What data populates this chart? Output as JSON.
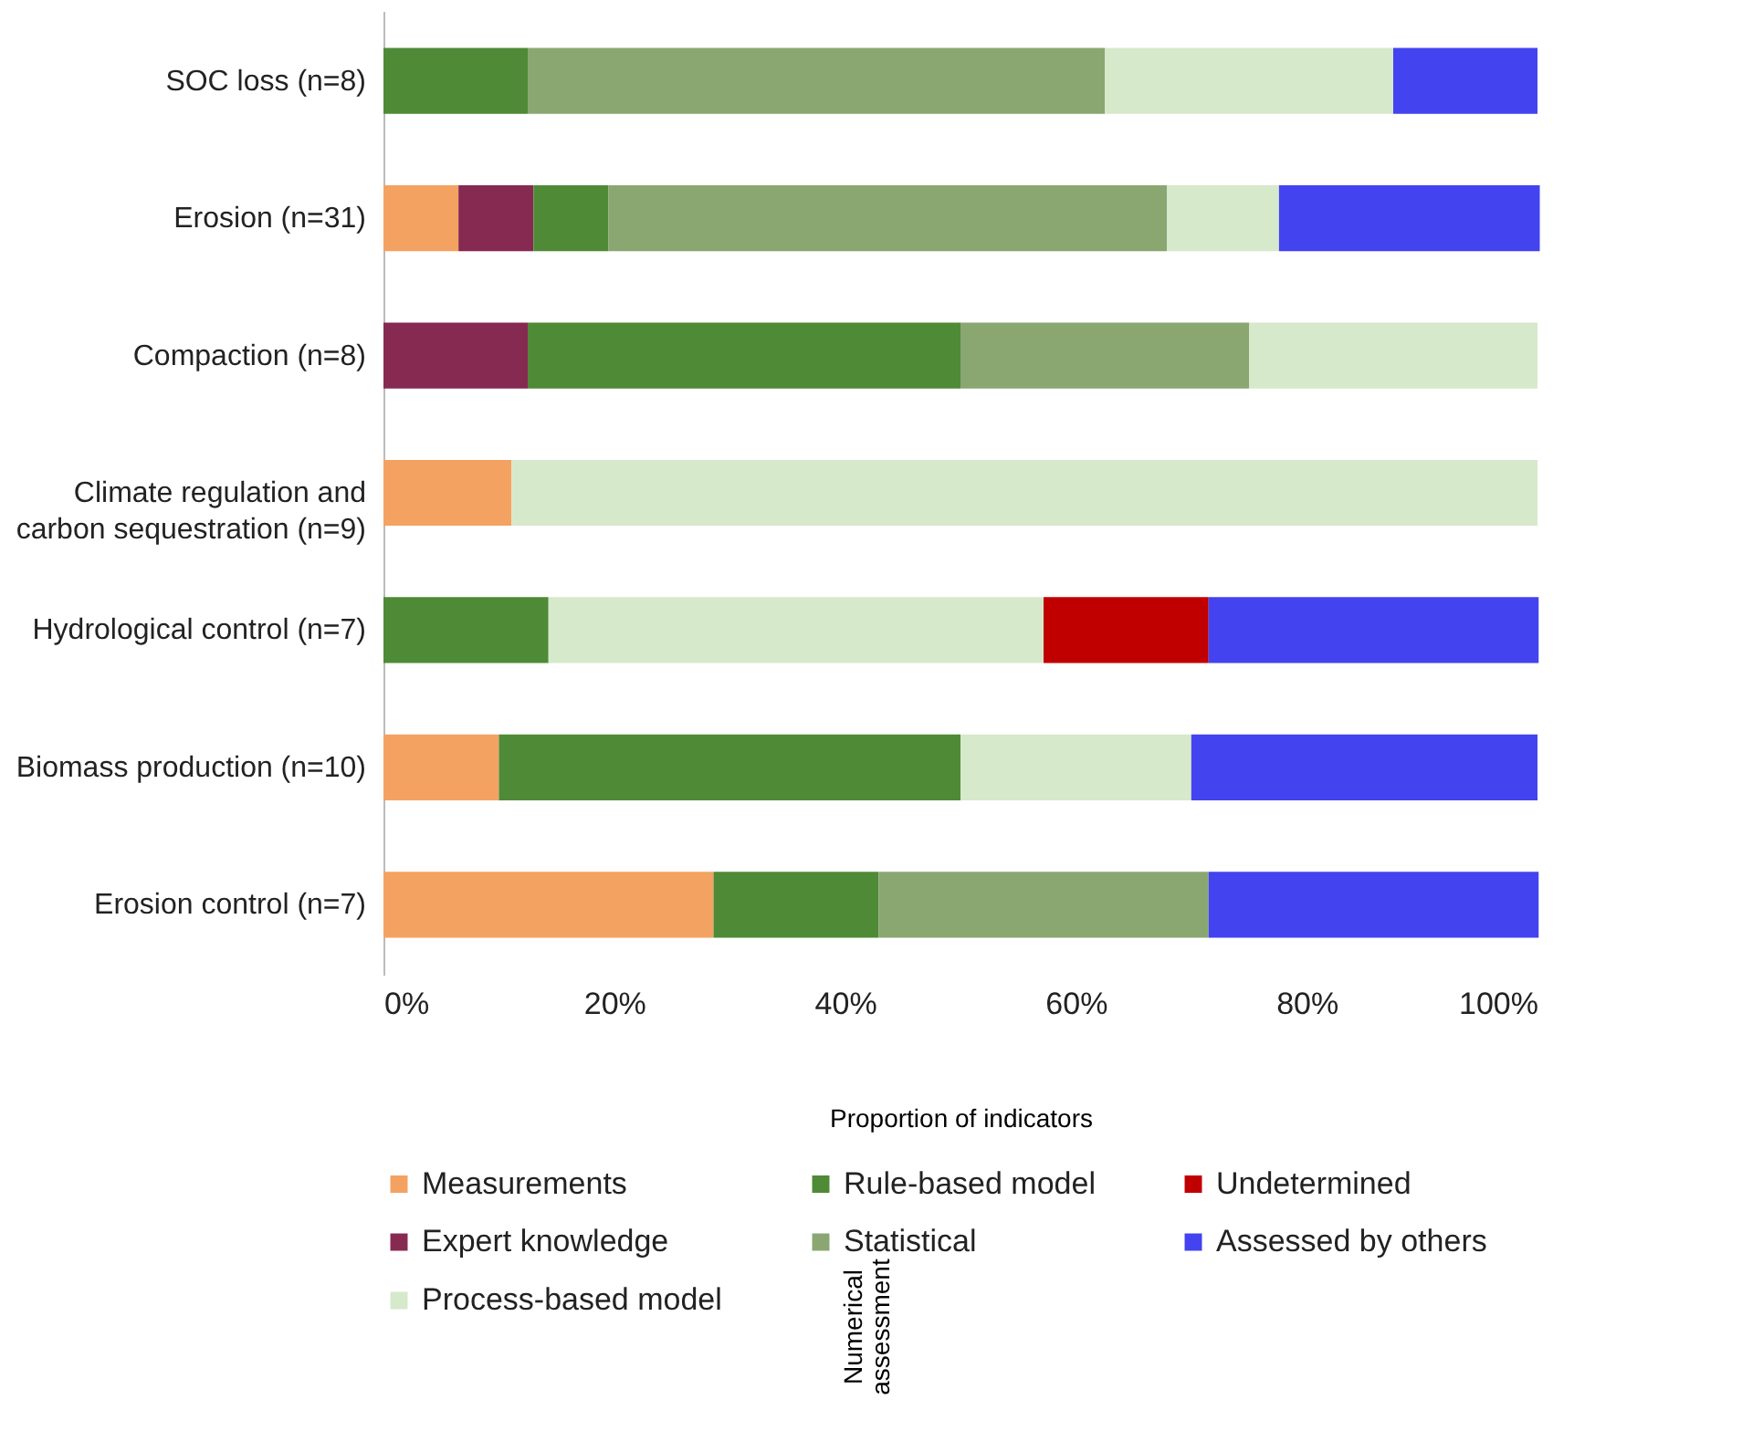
{
  "chart_data": {
    "type": "bar",
    "orientation": "horizontal",
    "stacked": true,
    "categories": [
      "SOC loss (n=8)",
      "Erosion (n=31)",
      "Compaction (n=8)",
      "Climate regulation and carbon sequestration (n=9)",
      "Hydrological control (n=7)",
      "Biomass production (n=10)",
      "Erosion control (n=7)"
    ],
    "series": [
      {
        "name": "Measurements",
        "color": "#f4a261",
        "values": [
          0,
          6.5,
          0,
          11.1,
          0,
          10,
          28.6
        ]
      },
      {
        "name": "Expert knowledge",
        "color": "#862a52",
        "values": [
          0,
          6.5,
          12.5,
          0,
          0,
          0,
          0
        ]
      },
      {
        "name": "Rule-based model",
        "color": "#4f8a37",
        "values": [
          12.5,
          6.5,
          37.5,
          0,
          14.3,
          40,
          14.3
        ]
      },
      {
        "name": "Statistical",
        "color": "#8aa772",
        "values": [
          50,
          48.4,
          25,
          0,
          0,
          0,
          28.6
        ]
      },
      {
        "name": "Process-based model",
        "color": "#d6e9cb",
        "values": [
          25,
          9.7,
          25,
          88.9,
          42.9,
          20,
          0
        ]
      },
      {
        "name": "Undetermined",
        "color": "#c00000",
        "values": [
          0,
          0,
          0,
          0,
          14.3,
          0,
          0
        ]
      },
      {
        "name": "Assessed by others",
        "color": "#4343ef",
        "values": [
          12.5,
          22.6,
          0,
          0,
          28.6,
          30,
          28.6
        ]
      }
    ],
    "xlim": [
      0,
      100
    ],
    "xticks": [
      {
        "value": 0,
        "label": "0%"
      },
      {
        "value": 20,
        "label": "20%"
      },
      {
        "value": 40,
        "label": "40%"
      },
      {
        "value": 60,
        "label": "60%"
      },
      {
        "value": 80,
        "label": "80%"
      },
      {
        "value": 100,
        "label": "100%"
      }
    ],
    "xlabel": "Proportion of indicators",
    "annotations": [
      "Numerical assessment"
    ],
    "legend": "bottom",
    "grid": false
  }
}
